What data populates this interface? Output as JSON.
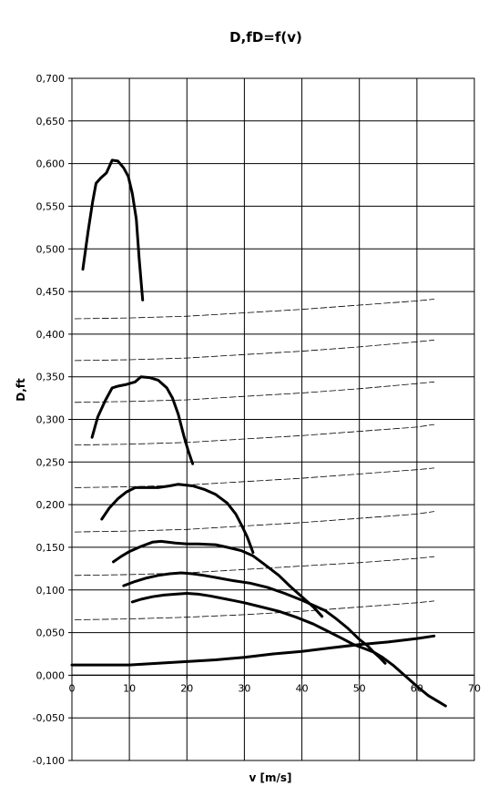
{
  "chart_data": {
    "type": "line",
    "title": "D,fD=f(v)",
    "xlabel": "v [m/s]",
    "ylabel": "D,ft",
    "xlim": [
      0,
      70
    ],
    "ylim": [
      -0.1,
      0.7
    ],
    "x_ticks": [
      0,
      10,
      20,
      30,
      40,
      50,
      60,
      70
    ],
    "x_tick_labels": [
      "0",
      "10",
      "20",
      "30",
      "40",
      "50",
      "60",
      "70"
    ],
    "y_ticks": [
      -0.1,
      -0.05,
      0,
      0.05,
      0.1,
      0.15,
      0.2,
      0.25,
      0.3,
      0.35,
      0.4,
      0.45,
      0.5,
      0.55,
      0.6,
      0.65,
      0.7
    ],
    "y_tick_labels": [
      "-0,100",
      "-0,050",
      "0,000",
      "0,050",
      "0,100",
      "0,150",
      "0,200",
      "0,250",
      "0,300",
      "0,350",
      "0,400",
      "0,450",
      "0,500",
      "0,550",
      "0,600",
      "0,650",
      "0,700"
    ],
    "grid": true,
    "legend": "none",
    "series": [
      {
        "style": "solid",
        "width": 3,
        "points": [
          [
            1.9,
            0.476
          ],
          [
            2.8,
            0.52
          ],
          [
            3.6,
            0.555
          ],
          [
            4.2,
            0.577
          ],
          [
            5.0,
            0.583
          ],
          [
            6.0,
            0.589
          ],
          [
            7.0,
            0.604
          ],
          [
            8.0,
            0.603
          ],
          [
            9.0,
            0.595
          ],
          [
            9.8,
            0.585
          ],
          [
            10.5,
            0.565
          ],
          [
            11.2,
            0.535
          ],
          [
            11.7,
            0.488
          ],
          [
            12.3,
            0.44
          ]
        ]
      },
      {
        "style": "solid",
        "width": 3,
        "points": [
          [
            3.5,
            0.279
          ],
          [
            4.5,
            0.303
          ],
          [
            5.8,
            0.322
          ],
          [
            7.0,
            0.337
          ],
          [
            8.0,
            0.339
          ],
          [
            9.5,
            0.341
          ],
          [
            11.0,
            0.344
          ],
          [
            12.0,
            0.35
          ],
          [
            13.5,
            0.349
          ],
          [
            15.0,
            0.346
          ],
          [
            16.5,
            0.337
          ],
          [
            17.5,
            0.325
          ],
          [
            18.5,
            0.306
          ],
          [
            19.5,
            0.28
          ],
          [
            20.2,
            0.264
          ],
          [
            21.0,
            0.248
          ]
        ]
      },
      {
        "style": "solid",
        "width": 3,
        "points": [
          [
            5.2,
            0.183
          ],
          [
            6.5,
            0.196
          ],
          [
            8.0,
            0.207
          ],
          [
            9.5,
            0.215
          ],
          [
            11.0,
            0.22
          ],
          [
            13.0,
            0.22
          ],
          [
            15.0,
            0.22
          ],
          [
            17.0,
            0.222
          ],
          [
            18.5,
            0.224
          ],
          [
            21.0,
            0.222
          ],
          [
            23.0,
            0.218
          ],
          [
            25.0,
            0.212
          ],
          [
            27.0,
            0.202
          ],
          [
            28.5,
            0.189
          ],
          [
            29.5,
            0.176
          ],
          [
            30.5,
            0.162
          ],
          [
            31.5,
            0.144
          ]
        ]
      },
      {
        "style": "solid",
        "width": 3,
        "points": [
          [
            7.2,
            0.133
          ],
          [
            8.5,
            0.139
          ],
          [
            10.0,
            0.145
          ],
          [
            12.0,
            0.151
          ],
          [
            14.0,
            0.156
          ],
          [
            15.5,
            0.157
          ],
          [
            18.0,
            0.155
          ],
          [
            20.0,
            0.154
          ],
          [
            22.0,
            0.154
          ],
          [
            25.0,
            0.153
          ],
          [
            27.0,
            0.15
          ],
          [
            29.5,
            0.146
          ],
          [
            31.5,
            0.14
          ],
          [
            33.5,
            0.13
          ],
          [
            36.0,
            0.117
          ],
          [
            38.0,
            0.104
          ],
          [
            40.0,
            0.092
          ],
          [
            42.0,
            0.08
          ],
          [
            43.5,
            0.069
          ]
        ]
      },
      {
        "style": "solid",
        "width": 3,
        "points": [
          [
            9.0,
            0.105
          ],
          [
            11.0,
            0.11
          ],
          [
            13.0,
            0.114
          ],
          [
            15.0,
            0.117
          ],
          [
            17.0,
            0.119
          ],
          [
            19.0,
            0.12
          ],
          [
            21.0,
            0.119
          ],
          [
            23.0,
            0.117
          ],
          [
            25.5,
            0.114
          ],
          [
            28.0,
            0.111
          ],
          [
            31.0,
            0.108
          ],
          [
            34.0,
            0.103
          ],
          [
            37.0,
            0.096
          ],
          [
            40.0,
            0.088
          ],
          [
            42.0,
            0.082
          ],
          [
            44.0,
            0.076
          ],
          [
            46.0,
            0.066
          ],
          [
            48.0,
            0.055
          ],
          [
            50.0,
            0.042
          ],
          [
            51.5,
            0.034
          ],
          [
            52.5,
            0.027
          ],
          [
            53.5,
            0.021
          ],
          [
            54.5,
            0.014
          ]
        ]
      },
      {
        "style": "solid",
        "width": 3,
        "points": [
          [
            10.5,
            0.086
          ],
          [
            12.0,
            0.089
          ],
          [
            14.0,
            0.092
          ],
          [
            16.0,
            0.094
          ],
          [
            18.0,
            0.095
          ],
          [
            20.0,
            0.096
          ],
          [
            22.0,
            0.095
          ],
          [
            24.0,
            0.093
          ],
          [
            27.0,
            0.089
          ],
          [
            30.0,
            0.085
          ],
          [
            33.0,
            0.08
          ],
          [
            36.0,
            0.075
          ],
          [
            39.0,
            0.068
          ],
          [
            42.0,
            0.06
          ],
          [
            45.0,
            0.05
          ],
          [
            47.0,
            0.043
          ],
          [
            49.0,
            0.036
          ],
          [
            51.0,
            0.031
          ],
          [
            52.5,
            0.027
          ],
          [
            54.0,
            0.021
          ],
          [
            56.0,
            0.011
          ],
          [
            58.0,
            -0.001
          ],
          [
            60.0,
            -0.013
          ],
          [
            62.0,
            -0.024
          ],
          [
            64.0,
            -0.032
          ],
          [
            65.0,
            -0.036
          ]
        ]
      },
      {
        "style": "solid",
        "width": 3,
        "points": [
          [
            0,
            0.012
          ],
          [
            5,
            0.012
          ],
          [
            10,
            0.012
          ],
          [
            15,
            0.014
          ],
          [
            20,
            0.016
          ],
          [
            25,
            0.018
          ],
          [
            30,
            0.021
          ],
          [
            35,
            0.025
          ],
          [
            40,
            0.028
          ],
          [
            45,
            0.032
          ],
          [
            50,
            0.036
          ],
          [
            55,
            0.039
          ],
          [
            60,
            0.043
          ],
          [
            63,
            0.046
          ]
        ]
      },
      {
        "style": "dashed",
        "width": 0.8,
        "points": [
          [
            0.5,
            0.418
          ],
          [
            10,
            0.419
          ],
          [
            20,
            0.421
          ],
          [
            30,
            0.425
          ],
          [
            40,
            0.429
          ],
          [
            50,
            0.434
          ],
          [
            60,
            0.439
          ],
          [
            63,
            0.441
          ]
        ]
      },
      {
        "style": "dashed",
        "width": 0.8,
        "points": [
          [
            0.5,
            0.369
          ],
          [
            10,
            0.37
          ],
          [
            20,
            0.372
          ],
          [
            30,
            0.376
          ],
          [
            40,
            0.38
          ],
          [
            50,
            0.385
          ],
          [
            60,
            0.391
          ],
          [
            63,
            0.393
          ]
        ]
      },
      {
        "style": "dashed",
        "width": 0.8,
        "points": [
          [
            0.5,
            0.32
          ],
          [
            10,
            0.321
          ],
          [
            20,
            0.323
          ],
          [
            30,
            0.327
          ],
          [
            40,
            0.331
          ],
          [
            50,
            0.336
          ],
          [
            60,
            0.342
          ],
          [
            63,
            0.344
          ]
        ]
      },
      {
        "style": "dashed",
        "width": 0.8,
        "points": [
          [
            0.5,
            0.27
          ],
          [
            10,
            0.271
          ],
          [
            20,
            0.273
          ],
          [
            30,
            0.277
          ],
          [
            40,
            0.281
          ],
          [
            50,
            0.286
          ],
          [
            60,
            0.291
          ],
          [
            63,
            0.294
          ]
        ]
      },
      {
        "style": "dashed",
        "width": 0.8,
        "points": [
          [
            0.5,
            0.22
          ],
          [
            10,
            0.221
          ],
          [
            20,
            0.223
          ],
          [
            30,
            0.227
          ],
          [
            40,
            0.231
          ],
          [
            50,
            0.236
          ],
          [
            60,
            0.241
          ],
          [
            63,
            0.243
          ]
        ]
      },
      {
        "style": "dashed",
        "width": 0.8,
        "points": [
          [
            0.5,
            0.168
          ],
          [
            10,
            0.169
          ],
          [
            20,
            0.171
          ],
          [
            30,
            0.175
          ],
          [
            40,
            0.179
          ],
          [
            50,
            0.184
          ],
          [
            60,
            0.189
          ],
          [
            63,
            0.192
          ]
        ]
      },
      {
        "style": "dashed",
        "width": 0.8,
        "points": [
          [
            0.5,
            0.117
          ],
          [
            10,
            0.118
          ],
          [
            20,
            0.12
          ],
          [
            30,
            0.124
          ],
          [
            40,
            0.128
          ],
          [
            50,
            0.132
          ],
          [
            60,
            0.137
          ],
          [
            63,
            0.139
          ]
        ]
      },
      {
        "style": "dashed",
        "width": 0.8,
        "points": [
          [
            0.5,
            0.065
          ],
          [
            10,
            0.066
          ],
          [
            20,
            0.068
          ],
          [
            30,
            0.071
          ],
          [
            40,
            0.075
          ],
          [
            50,
            0.08
          ],
          [
            60,
            0.085
          ],
          [
            63,
            0.087
          ]
        ]
      }
    ]
  }
}
